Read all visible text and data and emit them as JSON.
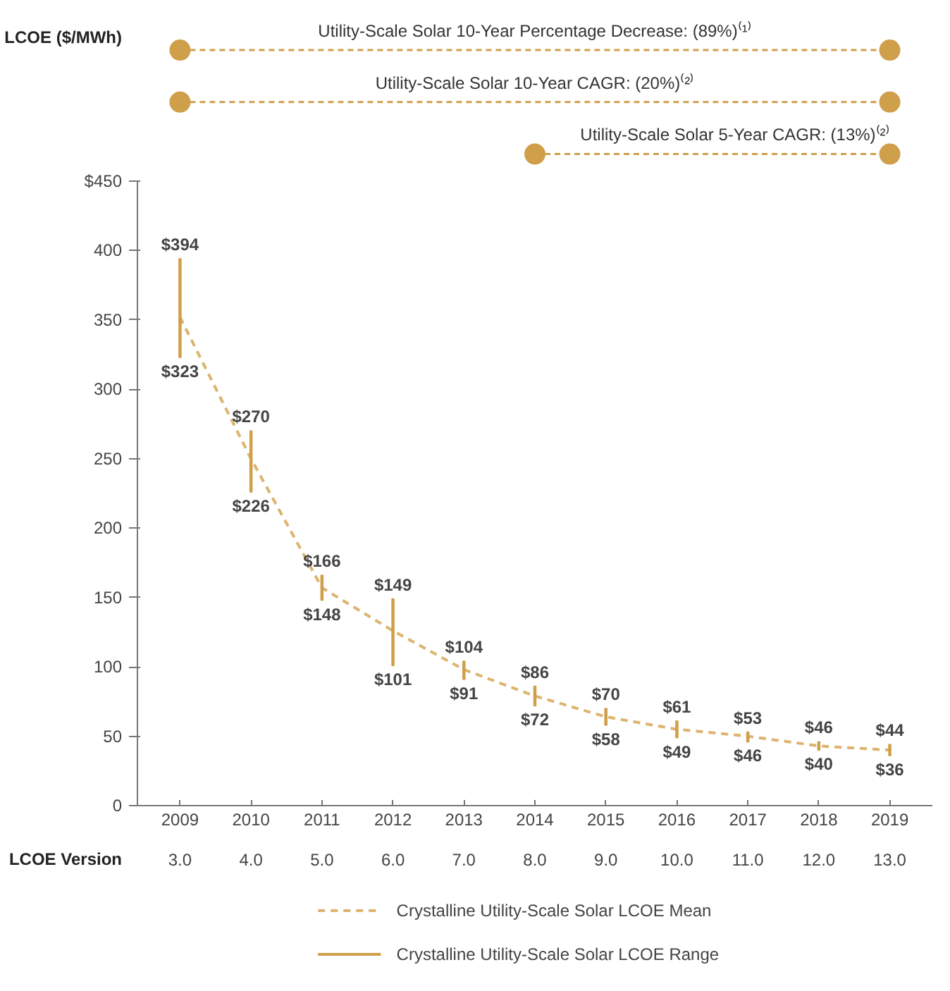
{
  "chart_data": {
    "type": "line",
    "categories": [
      "2009",
      "2010",
      "2011",
      "2012",
      "2013",
      "2014",
      "2015",
      "2016",
      "2017",
      "2018",
      "2019"
    ],
    "ylim": [
      0,
      450
    ],
    "yticks": [
      0,
      50,
      100,
      150,
      200,
      250,
      300,
      350,
      400,
      {
        "value": 450,
        "label": "$450"
      }
    ],
    "grid": false,
    "legend": "bottom",
    "marker": "none",
    "series": [
      {
        "name": "Crystalline Utility-Scale Solar LCOE Mean",
        "line_style": "dashed",
        "color": "#dcb46e",
        "values": [
          352,
          250,
          157,
          126,
          98,
          79,
          64,
          55,
          50,
          43,
          40
        ]
      },
      {
        "name": "Crystalline Utility-Scale Solar LCOE Range",
        "type": "bar",
        "color": "#cf9f4a",
        "base": [
          323,
          226,
          148,
          101,
          91,
          72,
          58,
          49,
          46,
          40,
          36
        ],
        "values": [
          71,
          44,
          18,
          48,
          13,
          14,
          12,
          12,
          7,
          6,
          8
        ]
      }
    ],
    "annotations": [
      "LCOE ($/MWh)",
      "Utility-Scale Solar 10-Year Percentage Decrease: (89%)⁽¹⁾",
      "Utility-Scale Solar 10-Year CAGR: (20%)⁽²⁾",
      "Utility-Scale Solar 5-Year CAGR: (13%)⁽²⁾",
      {
        "text": "$394",
        "x": "2009",
        "y": 394
      },
      {
        "text": "$323",
        "x": "2009",
        "y": 323
      },
      {
        "text": "$270",
        "x": "2010",
        "y": 270
      },
      {
        "text": "$226",
        "x": "2010",
        "y": 226
      },
      {
        "text": "$166",
        "x": "2011",
        "y": 166
      },
      {
        "text": "$148",
        "x": "2011",
        "y": 148
      },
      {
        "text": "$149",
        "x": "2012",
        "y": 149
      },
      {
        "text": "$101",
        "x": "2012",
        "y": 101
      },
      {
        "text": "$104",
        "x": "2013",
        "y": 104
      },
      {
        "text": "$91",
        "x": "2013",
        "y": 91
      },
      {
        "text": "$86",
        "x": "2014",
        "y": 86
      },
      {
        "text": "$72",
        "x": "2014",
        "y": 72
      },
      {
        "text": "$70",
        "x": "2015",
        "y": 70
      },
      {
        "text": "$58",
        "x": "2015",
        "y": 58
      },
      {
        "text": "$61",
        "x": "2016",
        "y": 61
      },
      {
        "text": "$49",
        "x": "2016",
        "y": 49
      },
      {
        "text": "$53",
        "x": "2017",
        "y": 53
      },
      {
        "text": "$46",
        "x": "2017",
        "y": 46
      },
      {
        "text": "$46",
        "x": "2018",
        "y": 46
      },
      {
        "text": "$40",
        "x": "2018",
        "y": 40
      },
      {
        "text": "$44",
        "x": "2019",
        "y": 44
      },
      {
        "text": "$36",
        "x": "2019",
        "y": 36
      },
      "LCOE Version",
      "3.0",
      "4.0",
      "5.0",
      "6.0",
      "7.0",
      "8.0",
      "9.0",
      "10.0",
      "11.0",
      "12.0",
      "13.0"
    ]
  }
}
